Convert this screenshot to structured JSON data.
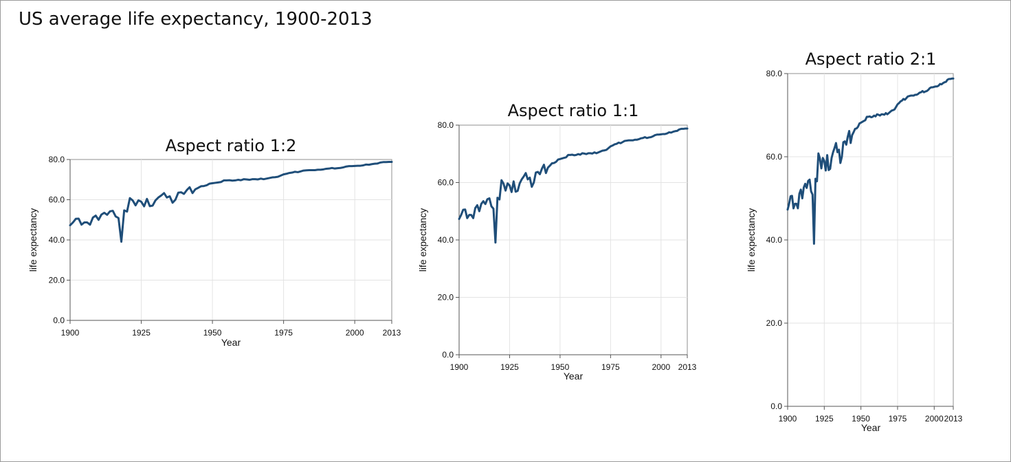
{
  "title": "US average life expectancy, 1900-2013",
  "colors": {
    "line": "#1f4e79"
  },
  "chart_data": [
    {
      "type": "line",
      "title": "Aspect ratio 1:2",
      "xlabel": "Year",
      "ylabel": "life expectancy",
      "xlim": [
        1900,
        2013
      ],
      "ylim": [
        0,
        80
      ],
      "xticks": [
        "1900",
        "1925",
        "1950",
        "1975",
        "2000",
        "2013"
      ],
      "yticks": [
        "0.0",
        "20.0",
        "40.0",
        "60.0",
        "80.0"
      ],
      "grid": true,
      "series_ref": "life_expectancy"
    },
    {
      "type": "line",
      "title": "Aspect ratio 1:1",
      "xlabel": "Year",
      "ylabel": "life expectancy",
      "xlim": [
        1900,
        2013
      ],
      "ylim": [
        0,
        80
      ],
      "xticks": [
        "1900",
        "1925",
        "1950",
        "1975",
        "2000",
        "2013"
      ],
      "yticks": [
        "0.0",
        "20.0",
        "40.0",
        "60.0",
        "80.0"
      ],
      "grid": true,
      "series_ref": "life_expectancy"
    },
    {
      "type": "line",
      "title": "Aspect ratio 2:1",
      "xlabel": "Year",
      "ylabel": "life expectancy",
      "xlim": [
        1900,
        2013
      ],
      "ylim": [
        0,
        80
      ],
      "xticks": [
        "1900",
        "1925",
        "1950",
        "1975",
        "2000",
        "2013"
      ],
      "yticks": [
        "0.0",
        "20.0",
        "40.0",
        "60.0",
        "80.0"
      ],
      "grid": true,
      "series_ref": "life_expectancy"
    }
  ],
  "series": {
    "life_expectancy": {
      "x": [
        1900,
        1901,
        1902,
        1903,
        1904,
        1905,
        1906,
        1907,
        1908,
        1909,
        1910,
        1911,
        1912,
        1913,
        1914,
        1915,
        1916,
        1917,
        1918,
        1919,
        1920,
        1921,
        1922,
        1923,
        1924,
        1925,
        1926,
        1927,
        1928,
        1929,
        1930,
        1931,
        1932,
        1933,
        1934,
        1935,
        1936,
        1937,
        1938,
        1939,
        1940,
        1941,
        1942,
        1943,
        1944,
        1945,
        1946,
        1947,
        1948,
        1949,
        1950,
        1951,
        1952,
        1953,
        1954,
        1955,
        1956,
        1957,
        1958,
        1959,
        1960,
        1961,
        1962,
        1963,
        1964,
        1965,
        1966,
        1967,
        1968,
        1969,
        1970,
        1971,
        1972,
        1973,
        1974,
        1975,
        1976,
        1977,
        1978,
        1979,
        1980,
        1981,
        1982,
        1983,
        1984,
        1985,
        1986,
        1987,
        1988,
        1989,
        1990,
        1991,
        1992,
        1993,
        1994,
        1995,
        1996,
        1997,
        1998,
        1999,
        2000,
        2001,
        2002,
        2003,
        2004,
        2005,
        2006,
        2007,
        2008,
        2009,
        2010,
        2011,
        2012,
        2013
      ],
      "y": [
        47.3,
        48.7,
        50.5,
        50.6,
        47.6,
        48.7,
        48.7,
        47.6,
        51.1,
        52.1,
        50.0,
        52.6,
        53.5,
        52.5,
        54.2,
        54.5,
        51.7,
        50.9,
        39.1,
        54.7,
        54.1,
        60.8,
        59.6,
        57.2,
        59.7,
        59.0,
        56.7,
        60.4,
        56.8,
        57.1,
        59.7,
        61.1,
        62.1,
        63.3,
        61.1,
        61.7,
        58.5,
        60.0,
        63.5,
        63.7,
        62.9,
        64.8,
        66.2,
        63.3,
        65.2,
        65.9,
        66.7,
        66.8,
        67.2,
        68.0,
        68.2,
        68.4,
        68.6,
        68.8,
        69.6,
        69.6,
        69.7,
        69.5,
        69.6,
        69.9,
        69.7,
        70.2,
        70.1,
        69.9,
        70.2,
        70.2,
        70.1,
        70.5,
        70.2,
        70.5,
        70.8,
        71.1,
        71.2,
        71.4,
        72.0,
        72.6,
        72.9,
        73.3,
        73.5,
        73.9,
        73.7,
        74.1,
        74.5,
        74.6,
        74.7,
        74.7,
        74.7,
        74.9,
        74.9,
        75.1,
        75.4,
        75.5,
        75.8,
        75.5,
        75.7,
        75.8,
        76.1,
        76.5,
        76.7,
        76.7,
        76.8,
        76.9,
        76.9,
        77.1,
        77.5,
        77.4,
        77.7,
        77.9,
        78.0,
        78.5,
        78.7,
        78.7,
        78.8,
        78.8
      ]
    }
  }
}
